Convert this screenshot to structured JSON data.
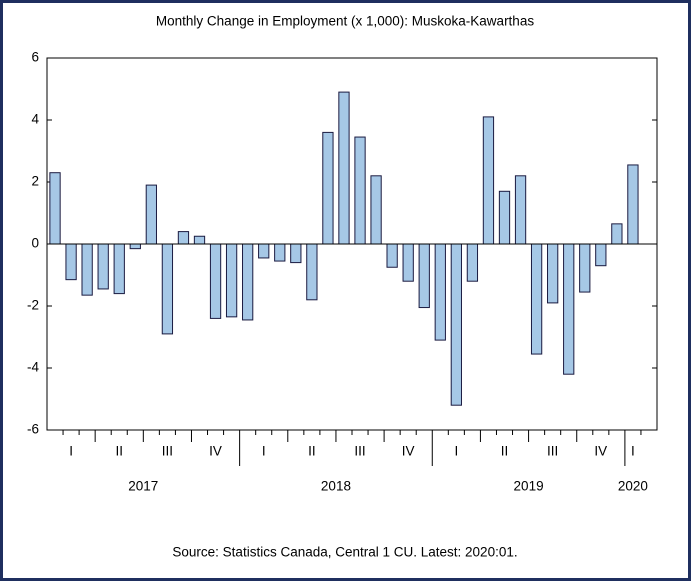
{
  "chart_data": {
    "type": "bar",
    "title": "Monthly Change in Employment (x 1,000): Muskoka-Kawarthas",
    "source": "Source: Statistics Canada, Central 1 CU. Latest: 2020:01.",
    "values": [
      2.3,
      -1.15,
      -1.65,
      -1.45,
      -1.6,
      -0.15,
      1.9,
      -2.9,
      0.4,
      0.25,
      -2.4,
      -2.35,
      -2.45,
      -0.45,
      -0.55,
      -0.6,
      -1.8,
      3.6,
      4.9,
      3.45,
      2.2,
      -0.75,
      -1.2,
      -2.05,
      -3.1,
      -5.2,
      -1.2,
      4.1,
      1.7,
      2.2,
      -3.55,
      -1.9,
      -4.2,
      -1.55,
      -0.7,
      0.65,
      2.55
    ],
    "quarter_labels": [
      "I",
      "II",
      "III",
      "IV",
      "I",
      "II",
      "III",
      "IV",
      "I",
      "II",
      "III",
      "IV",
      "I"
    ],
    "year_labels": [
      "2017",
      "2018",
      "2019",
      "2020"
    ],
    "color": "#a6c8e6",
    "edge_color": "#1a1a40",
    "ylim": [
      -6,
      6
    ],
    "yticks": [
      -6,
      -4,
      -2,
      0,
      2,
      4,
      6
    ],
    "grid": false
  }
}
